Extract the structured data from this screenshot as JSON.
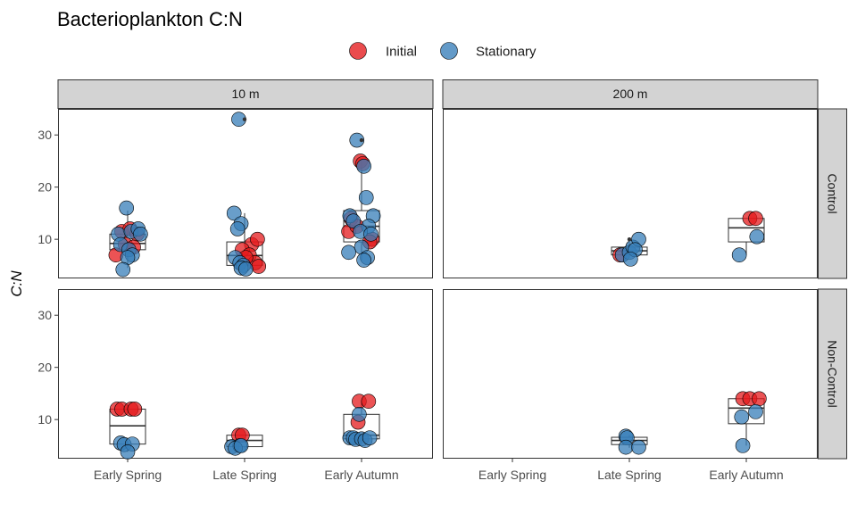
{
  "chart_data": {
    "type": "scatter",
    "title": "Bacterioplankton C:N",
    "ylabel": "C:N",
    "xlabel": "",
    "ylim": [
      2.5,
      35
    ],
    "yticks": [
      10,
      20,
      30
    ],
    "categories": [
      "Early Spring",
      "Late Spring",
      "Early Autumn"
    ],
    "columns": [
      "10 m",
      "200 m"
    ],
    "rows": [
      "Control",
      "Non-Control"
    ],
    "legend_position": "top",
    "series": [
      {
        "name": "Initial",
        "color": "#E41A1C"
      },
      {
        "name": "Stationary",
        "color": "#377EB8"
      }
    ],
    "panels": [
      {
        "column": "10 m",
        "row": "Control",
        "boxes": [
          {
            "category": "Early Spring",
            "q1": 8,
            "median": 9.2,
            "q3": 11,
            "wlo": 4.5,
            "whi": 15.5
          },
          {
            "category": "Late Spring",
            "q1": 5,
            "median": 6.9,
            "q3": 9.5,
            "wlo": 4.2,
            "whi": 15
          },
          {
            "category": "Early Autumn",
            "q1": 9.5,
            "median": 12.5,
            "q3": 15.5,
            "wlo": 6,
            "whi": 25
          }
        ],
        "outliers": [
          {
            "category": "Late Spring",
            "y": 33
          },
          {
            "category": "Early Autumn",
            "y": 29
          }
        ],
        "points": [
          {
            "series": "Initial",
            "category": "Early Spring",
            "dx": -0.1,
            "y": 7
          },
          {
            "series": "Initial",
            "category": "Early Spring",
            "dx": -0.05,
            "y": 11.5
          },
          {
            "series": "Initial",
            "category": "Early Spring",
            "dx": 0.02,
            "y": 12
          },
          {
            "series": "Initial",
            "category": "Early Spring",
            "dx": 0.08,
            "y": 11
          },
          {
            "series": "Initial",
            "category": "Early Spring",
            "dx": -0.02,
            "y": 9
          },
          {
            "series": "Initial",
            "category": "Early Spring",
            "dx": 0.05,
            "y": 8.5
          },
          {
            "series": "Stationary",
            "category": "Early Spring",
            "dx": -0.01,
            "y": 16
          },
          {
            "series": "Stationary",
            "category": "Early Spring",
            "dx": -0.08,
            "y": 11
          },
          {
            "series": "Stationary",
            "category": "Early Spring",
            "dx": 0.03,
            "y": 11.5
          },
          {
            "series": "Stationary",
            "category": "Early Spring",
            "dx": 0.09,
            "y": 12
          },
          {
            "series": "Stationary",
            "category": "Early Spring",
            "dx": 0.11,
            "y": 11
          },
          {
            "series": "Stationary",
            "category": "Early Spring",
            "dx": -0.06,
            "y": 9
          },
          {
            "series": "Stationary",
            "category": "Early Spring",
            "dx": 0.01,
            "y": 8
          },
          {
            "series": "Stationary",
            "category": "Early Spring",
            "dx": 0.04,
            "y": 7
          },
          {
            "series": "Stationary",
            "category": "Early Spring",
            "dx": 0.0,
            "y": 6.5
          },
          {
            "series": "Stationary",
            "category": "Early Spring",
            "dx": -0.04,
            "y": 4.2
          },
          {
            "series": "Initial",
            "category": "Late Spring",
            "dx": 0.06,
            "y": 9
          },
          {
            "series": "Initial",
            "category": "Late Spring",
            "dx": 0.11,
            "y": 10
          },
          {
            "series": "Initial",
            "category": "Late Spring",
            "dx": -0.02,
            "y": 8
          },
          {
            "series": "Initial",
            "category": "Late Spring",
            "dx": 0.04,
            "y": 7
          },
          {
            "series": "Initial",
            "category": "Late Spring",
            "dx": 0.09,
            "y": 5.5
          },
          {
            "series": "Initial",
            "category": "Late Spring",
            "dx": 0.12,
            "y": 4.8
          },
          {
            "series": "Initial",
            "category": "Late Spring",
            "dx": 0.01,
            "y": 6.5
          },
          {
            "series": "Stationary",
            "category": "Late Spring",
            "dx": -0.05,
            "y": 33
          },
          {
            "series": "Stationary",
            "category": "Late Spring",
            "dx": -0.09,
            "y": 15
          },
          {
            "series": "Stationary",
            "category": "Late Spring",
            "dx": -0.03,
            "y": 13
          },
          {
            "series": "Stationary",
            "category": "Late Spring",
            "dx": -0.06,
            "y": 12
          },
          {
            "series": "Stationary",
            "category": "Late Spring",
            "dx": -0.08,
            "y": 6.5
          },
          {
            "series": "Stationary",
            "category": "Late Spring",
            "dx": -0.04,
            "y": 5.5
          },
          {
            "series": "Stationary",
            "category": "Late Spring",
            "dx": -0.01,
            "y": 5
          },
          {
            "series": "Stationary",
            "category": "Late Spring",
            "dx": -0.03,
            "y": 4.5
          },
          {
            "series": "Stationary",
            "category": "Late Spring",
            "dx": 0.01,
            "y": 4.3
          },
          {
            "series": "Initial",
            "category": "Early Autumn",
            "dx": -0.01,
            "y": 25
          },
          {
            "series": "Initial",
            "category": "Early Autumn",
            "dx": 0.01,
            "y": 24.5
          },
          {
            "series": "Initial",
            "category": "Early Autumn",
            "dx": -0.09,
            "y": 14
          },
          {
            "series": "Initial",
            "category": "Early Autumn",
            "dx": -0.11,
            "y": 11.5
          },
          {
            "series": "Initial",
            "category": "Early Autumn",
            "dx": 0.09,
            "y": 10
          },
          {
            "series": "Initial",
            "category": "Early Autumn",
            "dx": 0.07,
            "y": 9.5
          },
          {
            "series": "Initial",
            "category": "Early Autumn",
            "dx": -0.04,
            "y": 12.5
          },
          {
            "series": "Stationary",
            "category": "Early Autumn",
            "dx": -0.04,
            "y": 29
          },
          {
            "series": "Stationary",
            "category": "Early Autumn",
            "dx": 0.02,
            "y": 24
          },
          {
            "series": "Stationary",
            "category": "Early Autumn",
            "dx": 0.04,
            "y": 18
          },
          {
            "series": "Stationary",
            "category": "Early Autumn",
            "dx": -0.1,
            "y": 14.5
          },
          {
            "series": "Stationary",
            "category": "Early Autumn",
            "dx": 0.1,
            "y": 14.5
          },
          {
            "series": "Stationary",
            "category": "Early Autumn",
            "dx": -0.07,
            "y": 13.5
          },
          {
            "series": "Stationary",
            "category": "Early Autumn",
            "dx": 0.06,
            "y": 12.5
          },
          {
            "series": "Stationary",
            "category": "Early Autumn",
            "dx": -0.01,
            "y": 11.5
          },
          {
            "series": "Stationary",
            "category": "Early Autumn",
            "dx": 0.08,
            "y": 11
          },
          {
            "series": "Stationary",
            "category": "Early Autumn",
            "dx": 0.0,
            "y": 8.5
          },
          {
            "series": "Stationary",
            "category": "Early Autumn",
            "dx": -0.11,
            "y": 7.5
          },
          {
            "series": "Stationary",
            "category": "Early Autumn",
            "dx": 0.05,
            "y": 6.5
          },
          {
            "series": "Stationary",
            "category": "Early Autumn",
            "dx": 0.02,
            "y": 6
          }
        ]
      },
      {
        "column": "200 m",
        "row": "Control",
        "boxes": [
          {
            "category": "Late Spring",
            "q1": 7,
            "median": 7.8,
            "q3": 8.5,
            "wlo": 6.5,
            "whi": 9.5
          },
          {
            "category": "Early Autumn",
            "q1": 9.5,
            "median": 12.2,
            "q3": 14,
            "wlo": 7,
            "whi": 14
          }
        ],
        "outliers": [
          {
            "category": "Late Spring",
            "y": 10
          }
        ],
        "points": [
          {
            "series": "Initial",
            "category": "Late Spring",
            "dx": -0.08,
            "y": 7
          },
          {
            "series": "Stationary",
            "category": "Late Spring",
            "dx": -0.06,
            "y": 7
          },
          {
            "series": "Stationary",
            "category": "Late Spring",
            "dx": 0.0,
            "y": 7.5
          },
          {
            "series": "Stationary",
            "category": "Late Spring",
            "dx": 0.03,
            "y": 8.5
          },
          {
            "series": "Stationary",
            "category": "Late Spring",
            "dx": 0.08,
            "y": 10
          },
          {
            "series": "Stationary",
            "category": "Late Spring",
            "dx": 0.05,
            "y": 8
          },
          {
            "series": "Stationary",
            "category": "Late Spring",
            "dx": 0.01,
            "y": 6.2
          },
          {
            "series": "Initial",
            "category": "Early Autumn",
            "dx": 0.03,
            "y": 14
          },
          {
            "series": "Initial",
            "category": "Early Autumn",
            "dx": 0.08,
            "y": 14
          },
          {
            "series": "Stationary",
            "category": "Early Autumn",
            "dx": 0.09,
            "y": 10.5
          },
          {
            "series": "Stationary",
            "category": "Early Autumn",
            "dx": -0.06,
            "y": 7
          }
        ]
      },
      {
        "column": "10 m",
        "row": "Non-Control",
        "boxes": [
          {
            "category": "Early Spring",
            "q1": 5.3,
            "median": 8.8,
            "q3": 12,
            "wlo": 3.8,
            "whi": 12
          },
          {
            "category": "Late Spring",
            "q1": 4.8,
            "median": 6,
            "q3": 7,
            "wlo": 4.5,
            "whi": 7
          },
          {
            "category": "Early Autumn",
            "q1": 6.3,
            "median": 7,
            "q3": 11,
            "wlo": 6,
            "whi": 13.5
          }
        ],
        "outliers": [],
        "points": [
          {
            "series": "Initial",
            "category": "Early Spring",
            "dx": -0.09,
            "y": 12
          },
          {
            "series": "Initial",
            "category": "Early Spring",
            "dx": -0.05,
            "y": 12
          },
          {
            "series": "Initial",
            "category": "Early Spring",
            "dx": 0.03,
            "y": 12
          },
          {
            "series": "Initial",
            "category": "Early Spring",
            "dx": 0.06,
            "y": 12
          },
          {
            "series": "Stationary",
            "category": "Early Spring",
            "dx": -0.06,
            "y": 5.5
          },
          {
            "series": "Stationary",
            "category": "Early Spring",
            "dx": -0.03,
            "y": 5.2
          },
          {
            "series": "Stationary",
            "category": "Early Spring",
            "dx": 0.04,
            "y": 5.3
          },
          {
            "series": "Stationary",
            "category": "Early Spring",
            "dx": 0.0,
            "y": 3.8
          },
          {
            "series": "Initial",
            "category": "Late Spring",
            "dx": -0.05,
            "y": 7
          },
          {
            "series": "Initial",
            "category": "Late Spring",
            "dx": -0.02,
            "y": 7
          },
          {
            "series": "Stationary",
            "category": "Late Spring",
            "dx": -0.11,
            "y": 4.8
          },
          {
            "series": "Stationary",
            "category": "Late Spring",
            "dx": -0.04,
            "y": 5
          },
          {
            "series": "Stationary",
            "category": "Late Spring",
            "dx": -0.08,
            "y": 4.5
          },
          {
            "series": "Stationary",
            "category": "Late Spring",
            "dx": -0.03,
            "y": 5
          },
          {
            "series": "Initial",
            "category": "Early Autumn",
            "dx": -0.02,
            "y": 13.5
          },
          {
            "series": "Initial",
            "category": "Early Autumn",
            "dx": 0.06,
            "y": 13.5
          },
          {
            "series": "Initial",
            "category": "Early Autumn",
            "dx": -0.03,
            "y": 9.5
          },
          {
            "series": "Stationary",
            "category": "Early Autumn",
            "dx": -0.02,
            "y": 11
          },
          {
            "series": "Stationary",
            "category": "Early Autumn",
            "dx": -0.1,
            "y": 6.5
          },
          {
            "series": "Stationary",
            "category": "Early Autumn",
            "dx": -0.07,
            "y": 6.5
          },
          {
            "series": "Stationary",
            "category": "Early Autumn",
            "dx": -0.05,
            "y": 6.2
          },
          {
            "series": "Stationary",
            "category": "Early Autumn",
            "dx": 0.0,
            "y": 6.3
          },
          {
            "series": "Stationary",
            "category": "Early Autumn",
            "dx": 0.03,
            "y": 6
          },
          {
            "series": "Stationary",
            "category": "Early Autumn",
            "dx": 0.07,
            "y": 6.5
          }
        ]
      },
      {
        "column": "200 m",
        "row": "Non-Control",
        "boxes": [
          {
            "category": "Late Spring",
            "q1": 5.2,
            "median": 6,
            "q3": 6.6,
            "wlo": 4.6,
            "whi": 7
          },
          {
            "category": "Early Autumn",
            "q1": 9.2,
            "median": 12.2,
            "q3": 14,
            "wlo": 5,
            "whi": 14
          }
        ],
        "outliers": [],
        "points": [
          {
            "series": "Stationary",
            "category": "Late Spring",
            "dx": -0.03,
            "y": 6.8
          },
          {
            "series": "Stationary",
            "category": "Late Spring",
            "dx": -0.02,
            "y": 6.5
          },
          {
            "series": "Stationary",
            "category": "Late Spring",
            "dx": -0.03,
            "y": 4.7
          },
          {
            "series": "Stationary",
            "category": "Late Spring",
            "dx": 0.08,
            "y": 4.7
          },
          {
            "series": "Initial",
            "category": "Early Autumn",
            "dx": -0.03,
            "y": 14
          },
          {
            "series": "Initial",
            "category": "Early Autumn",
            "dx": 0.03,
            "y": 14
          },
          {
            "series": "Initial",
            "category": "Early Autumn",
            "dx": 0.11,
            "y": 14
          },
          {
            "series": "Stationary",
            "category": "Early Autumn",
            "dx": -0.04,
            "y": 10.5
          },
          {
            "series": "Stationary",
            "category": "Early Autumn",
            "dx": 0.08,
            "y": 11.5
          },
          {
            "series": "Stationary",
            "category": "Early Autumn",
            "dx": -0.03,
            "y": 5
          }
        ]
      }
    ]
  }
}
